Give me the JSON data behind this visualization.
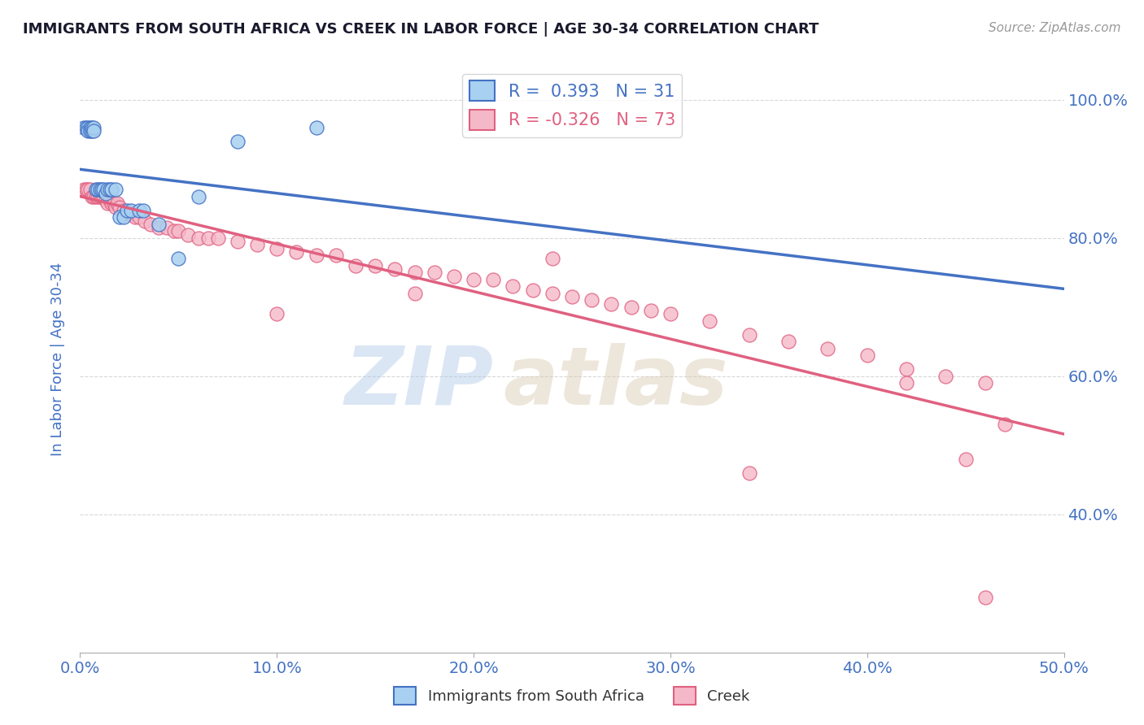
{
  "title": "IMMIGRANTS FROM SOUTH AFRICA VS CREEK IN LABOR FORCE | AGE 30-34 CORRELATION CHART",
  "source": "Source: ZipAtlas.com",
  "ylabel": "In Labor Force | Age 30-34",
  "xmin": 0.0,
  "xmax": 0.5,
  "ymin": 0.2,
  "ymax": 1.05,
  "xtick_labels": [
    "0.0%",
    "10.0%",
    "20.0%",
    "30.0%",
    "40.0%",
    "50.0%"
  ],
  "xtick_vals": [
    0.0,
    0.1,
    0.2,
    0.3,
    0.4,
    0.5
  ],
  "ytick_labels": [
    "40.0%",
    "60.0%",
    "80.0%",
    "100.0%"
  ],
  "ytick_vals": [
    0.4,
    0.6,
    0.8,
    1.0
  ],
  "blue_color": "#a8d0f0",
  "pink_color": "#f5b8c8",
  "blue_line_color": "#4472c4",
  "pink_line_color": "#e06080",
  "legend_blue_label": "R =  0.393   N = 31",
  "legend_pink_label": "R = -0.326   N = 73",
  "blue_x": [
    0.002,
    0.003,
    0.004,
    0.004,
    0.005,
    0.005,
    0.006,
    0.006,
    0.007,
    0.007,
    0.008,
    0.009,
    0.01,
    0.011,
    0.012,
    0.013,
    0.014,
    0.015,
    0.016,
    0.018,
    0.02,
    0.022,
    0.024,
    0.026,
    0.03,
    0.032,
    0.04,
    0.05,
    0.06,
    0.08,
    0.12
  ],
  "blue_y": [
    0.96,
    0.96,
    0.96,
    0.955,
    0.96,
    0.955,
    0.955,
    0.96,
    0.96,
    0.955,
    0.87,
    0.87,
    0.87,
    0.87,
    0.87,
    0.865,
    0.87,
    0.87,
    0.87,
    0.87,
    0.83,
    0.83,
    0.84,
    0.84,
    0.84,
    0.84,
    0.82,
    0.77,
    0.86,
    0.94,
    0.96
  ],
  "pink_x": [
    0.002,
    0.003,
    0.004,
    0.005,
    0.006,
    0.007,
    0.008,
    0.009,
    0.01,
    0.011,
    0.012,
    0.013,
    0.014,
    0.015,
    0.016,
    0.017,
    0.018,
    0.019,
    0.02,
    0.022,
    0.024,
    0.026,
    0.028,
    0.03,
    0.033,
    0.036,
    0.04,
    0.044,
    0.048,
    0.05,
    0.055,
    0.06,
    0.065,
    0.07,
    0.08,
    0.09,
    0.1,
    0.11,
    0.12,
    0.13,
    0.14,
    0.15,
    0.16,
    0.17,
    0.18,
    0.19,
    0.2,
    0.21,
    0.22,
    0.23,
    0.24,
    0.25,
    0.26,
    0.27,
    0.28,
    0.29,
    0.3,
    0.32,
    0.34,
    0.36,
    0.38,
    0.4,
    0.42,
    0.44,
    0.46,
    0.1,
    0.17,
    0.24,
    0.34,
    0.42,
    0.45,
    0.46,
    0.47
  ],
  "pink_y": [
    0.87,
    0.87,
    0.87,
    0.87,
    0.86,
    0.86,
    0.86,
    0.86,
    0.86,
    0.86,
    0.86,
    0.855,
    0.85,
    0.855,
    0.85,
    0.85,
    0.845,
    0.85,
    0.845,
    0.84,
    0.835,
    0.835,
    0.83,
    0.83,
    0.825,
    0.82,
    0.815,
    0.815,
    0.81,
    0.81,
    0.805,
    0.8,
    0.8,
    0.8,
    0.795,
    0.79,
    0.785,
    0.78,
    0.775,
    0.775,
    0.76,
    0.76,
    0.755,
    0.75,
    0.75,
    0.745,
    0.74,
    0.74,
    0.73,
    0.725,
    0.72,
    0.715,
    0.71,
    0.705,
    0.7,
    0.695,
    0.69,
    0.68,
    0.66,
    0.65,
    0.64,
    0.63,
    0.61,
    0.6,
    0.59,
    0.69,
    0.72,
    0.77,
    0.46,
    0.59,
    0.48,
    0.28,
    0.53
  ],
  "watermark_zip": "ZIP",
  "watermark_atlas": "atlas",
  "background_color": "#ffffff",
  "grid_color": "#d8d8d8",
  "title_color": "#1a1a2e",
  "axis_label_color": "#4472c4",
  "tick_label_color": "#4472c4"
}
